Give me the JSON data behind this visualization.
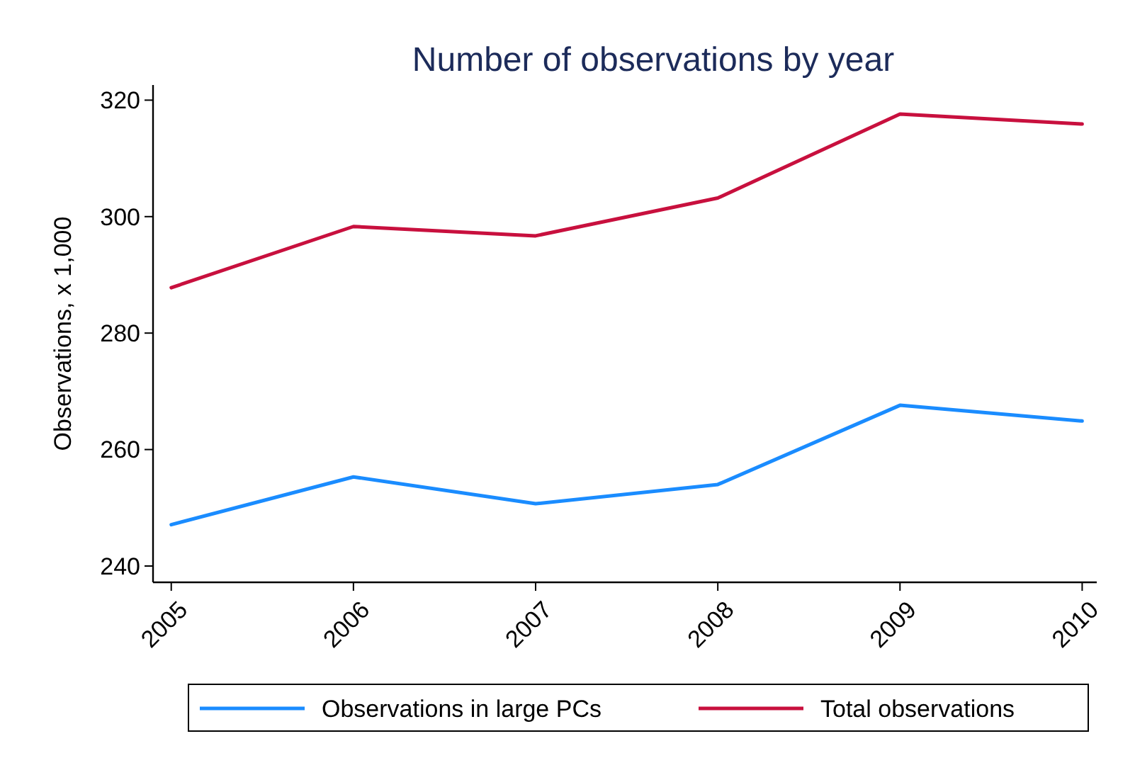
{
  "chart_data": {
    "type": "line",
    "title": "Number of observations by year",
    "ylabel": "Observations, x 1,000",
    "x": [
      2005,
      2006,
      2007,
      2008,
      2009,
      2010
    ],
    "xlim": [
      2004.9,
      2010.08
    ],
    "xticks": [
      2005,
      2006,
      2007,
      2008,
      2009,
      2010
    ],
    "ylim": [
      237.2,
      322.6
    ],
    "yticks": [
      240,
      260,
      280,
      300,
      320
    ],
    "series": [
      {
        "name": "Observations in large PCs",
        "color": "#1a8cff",
        "values": [
          247.1,
          255.3,
          250.7,
          254.0,
          267.6,
          264.9
        ]
      },
      {
        "name": "Total observations",
        "color": "#c8103e",
        "values": [
          287.8,
          298.3,
          296.7,
          303.2,
          317.6,
          315.9
        ]
      }
    ],
    "grid": false,
    "legend": "bottom",
    "line_style": "solid",
    "marker": "none"
  }
}
